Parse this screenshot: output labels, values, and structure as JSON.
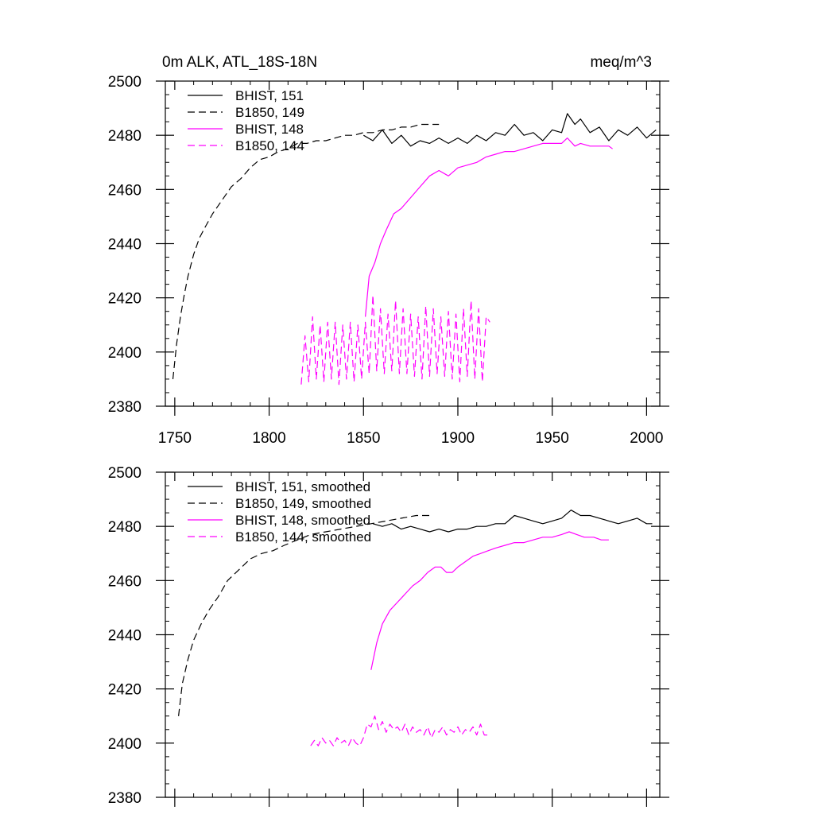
{
  "chart_data": [
    {
      "type": "line",
      "title_left": "0m ALK, ATL_18S-18N",
      "title_right": "meq/m^3",
      "xlim": [
        1745,
        2007
      ],
      "ylim": [
        2380,
        2500
      ],
      "x_ticks": [
        1750,
        1800,
        1850,
        1900,
        1950,
        2000
      ],
      "y_ticks": [
        2380,
        2400,
        2420,
        2440,
        2460,
        2480,
        2500
      ],
      "show_x_tick_labels": true,
      "legend_position": "top-left",
      "series": [
        {
          "name": "BHIST, 151",
          "color": "#000000",
          "dash": "solid",
          "x": [
            1850,
            1855,
            1860,
            1865,
            1870,
            1875,
            1880,
            1885,
            1890,
            1895,
            1900,
            1905,
            1910,
            1915,
            1920,
            1925,
            1930,
            1935,
            1940,
            1945,
            1950,
            1955,
            1958,
            1962,
            1965,
            1970,
            1975,
            1980,
            1985,
            1990,
            1995,
            2000,
            2005
          ],
          "y": [
            2480,
            2478,
            2482,
            2477,
            2480,
            2476,
            2478,
            2477,
            2479,
            2477,
            2479,
            2477,
            2480,
            2478,
            2481,
            2480,
            2484,
            2480,
            2481,
            2478,
            2482,
            2481,
            2488,
            2484,
            2486,
            2481,
            2483,
            2478,
            2482,
            2480,
            2483,
            2479,
            2482
          ]
        },
        {
          "name": "B1850, 149",
          "color": "#000000",
          "dash": "dashed",
          "x": [
            1749,
            1751,
            1753,
            1755,
            1757,
            1760,
            1763,
            1766,
            1770,
            1775,
            1780,
            1785,
            1790,
            1795,
            1800,
            1805,
            1810,
            1815,
            1820,
            1825,
            1830,
            1835,
            1840,
            1845,
            1850,
            1855,
            1860,
            1865,
            1870,
            1875,
            1880,
            1885,
            1890
          ],
          "y": [
            2390,
            2403,
            2413,
            2421,
            2428,
            2436,
            2442,
            2446,
            2451,
            2456,
            2461,
            2464,
            2468,
            2471,
            2472,
            2474,
            2475,
            2477,
            2477,
            2478,
            2478,
            2479,
            2480,
            2480,
            2481,
            2481,
            2482,
            2482,
            2483,
            2483,
            2484,
            2484,
            2484
          ]
        },
        {
          "name": "BHIST, 148",
          "color": "#ff00ff",
          "dash": "solid",
          "x": [
            1851,
            1853,
            1856,
            1859,
            1862,
            1866,
            1870,
            1875,
            1880,
            1885,
            1890,
            1895,
            1900,
            1905,
            1910,
            1915,
            1920,
            1925,
            1930,
            1935,
            1940,
            1945,
            1950,
            1955,
            1958,
            1962,
            1965,
            1970,
            1975,
            1980,
            1982
          ],
          "y": [
            2413,
            2428,
            2433,
            2440,
            2445,
            2451,
            2453,
            2457,
            2461,
            2465,
            2467,
            2465,
            2468,
            2469,
            2470,
            2472,
            2473,
            2474,
            2474,
            2475,
            2476,
            2477,
            2477,
            2477,
            2479,
            2476,
            2477,
            2476,
            2476,
            2476,
            2475
          ]
        },
        {
          "name": "B1850, 144",
          "color": "#ff00ff",
          "dash": "dashed",
          "x": [
            1817,
            1819,
            1821,
            1823,
            1825,
            1827,
            1829,
            1831,
            1833,
            1835,
            1837,
            1839,
            1841,
            1843,
            1845,
            1847,
            1849,
            1851,
            1853,
            1855,
            1857,
            1859,
            1861,
            1863,
            1865,
            1867,
            1869,
            1871,
            1873,
            1875,
            1877,
            1879,
            1881,
            1883,
            1885,
            1887,
            1889,
            1891,
            1893,
            1895,
            1897,
            1899,
            1901,
            1903,
            1905,
            1907,
            1909,
            1911,
            1913,
            1915,
            1917
          ],
          "y": [
            2388,
            2406,
            2389,
            2413,
            2390,
            2410,
            2389,
            2411,
            2390,
            2411,
            2388,
            2410,
            2390,
            2411,
            2389,
            2410,
            2390,
            2411,
            2392,
            2421,
            2393,
            2416,
            2392,
            2414,
            2393,
            2419,
            2392,
            2416,
            2392,
            2414,
            2391,
            2413,
            2390,
            2417,
            2391,
            2416,
            2392,
            2413,
            2391,
            2415,
            2390,
            2414,
            2389,
            2416,
            2391,
            2419,
            2390,
            2416,
            2389,
            2413,
            2411
          ]
        }
      ]
    },
    {
      "type": "line",
      "title_left": "",
      "title_right": "",
      "xlim": [
        1745,
        2007
      ],
      "ylim": [
        2380,
        2500
      ],
      "x_ticks": [
        1750,
        1800,
        1850,
        1900,
        1950,
        2000
      ],
      "y_ticks": [
        2380,
        2400,
        2420,
        2440,
        2460,
        2480,
        2500
      ],
      "show_x_tick_labels": false,
      "legend_position": "top-left",
      "series": [
        {
          "name": "BHIST, 151, smoothed",
          "color": "#000000",
          "dash": "solid",
          "x": [
            1855,
            1860,
            1865,
            1870,
            1875,
            1880,
            1885,
            1890,
            1895,
            1900,
            1905,
            1910,
            1915,
            1920,
            1925,
            1930,
            1935,
            1940,
            1945,
            1950,
            1955,
            1960,
            1965,
            1970,
            1975,
            1980,
            1985,
            1990,
            1995,
            2000,
            2003
          ],
          "y": [
            2481,
            2480,
            2481,
            2479,
            2480,
            2479,
            2478,
            2479,
            2478,
            2479,
            2479,
            2480,
            2480,
            2481,
            2481,
            2484,
            2483,
            2482,
            2481,
            2482,
            2483,
            2486,
            2484,
            2484,
            2483,
            2482,
            2481,
            2482,
            2483,
            2481,
            2481
          ]
        },
        {
          "name": "B1850, 149, smoothed",
          "color": "#000000",
          "dash": "dashed",
          "x": [
            1752,
            1754,
            1757,
            1760,
            1764,
            1768,
            1773,
            1778,
            1784,
            1790,
            1796,
            1802,
            1808,
            1815,
            1822,
            1830,
            1838,
            1846,
            1854,
            1862,
            1870,
            1878,
            1886
          ],
          "y": [
            2410,
            2422,
            2431,
            2438,
            2444,
            2449,
            2454,
            2460,
            2464,
            2468,
            2470,
            2471,
            2473,
            2475,
            2477,
            2478,
            2479,
            2480,
            2481,
            2482,
            2483,
            2484,
            2484
          ]
        },
        {
          "name": "BHIST, 148, smoothed",
          "color": "#ff00ff",
          "dash": "solid",
          "x": [
            1854,
            1857,
            1860,
            1864,
            1868,
            1872,
            1876,
            1880,
            1884,
            1888,
            1891,
            1894,
            1897,
            1900,
            1904,
            1908,
            1912,
            1916,
            1920,
            1925,
            1930,
            1935,
            1940,
            1945,
            1950,
            1955,
            1959,
            1963,
            1967,
            1972,
            1976,
            1980
          ],
          "y": [
            2427,
            2437,
            2444,
            2449,
            2452,
            2455,
            2458,
            2460,
            2463,
            2465,
            2465,
            2463,
            2463,
            2465,
            2467,
            2469,
            2470,
            2471,
            2472,
            2473,
            2474,
            2474,
            2475,
            2476,
            2476,
            2477,
            2478,
            2477,
            2476,
            2476,
            2475,
            2475
          ]
        },
        {
          "name": "B1850, 144, smoothed",
          "color": "#ff00ff",
          "dash": "dashed",
          "x": [
            1822,
            1824,
            1826,
            1828,
            1830,
            1832,
            1834,
            1836,
            1838,
            1840,
            1842,
            1844,
            1846,
            1848,
            1850,
            1852,
            1854,
            1856,
            1858,
            1860,
            1862,
            1864,
            1866,
            1868,
            1870,
            1872,
            1874,
            1876,
            1878,
            1880,
            1882,
            1884,
            1886,
            1888,
            1890,
            1892,
            1894,
            1896,
            1898,
            1900,
            1902,
            1904,
            1906,
            1908,
            1910,
            1912,
            1914,
            1916
          ],
          "y": [
            2399,
            2401,
            2399,
            2402,
            2400,
            2401,
            2399,
            2402,
            2400,
            2401,
            2399,
            2402,
            2400,
            2399,
            2402,
            2407,
            2406,
            2410,
            2405,
            2408,
            2404,
            2407,
            2405,
            2406,
            2404,
            2407,
            2403,
            2406,
            2404,
            2405,
            2403,
            2406,
            2402,
            2405,
            2404,
            2406,
            2403,
            2405,
            2404,
            2406,
            2403,
            2405,
            2404,
            2406,
            2403,
            2407,
            2403,
            2403
          ]
        }
      ]
    }
  ]
}
